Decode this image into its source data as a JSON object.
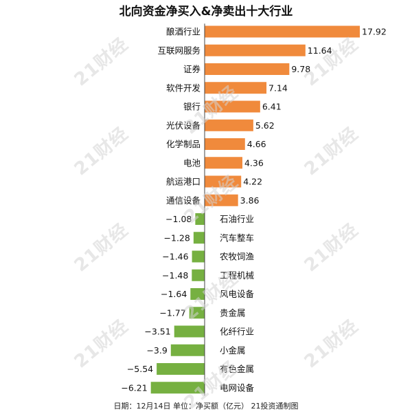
{
  "watermark_text": "21财经",
  "footnote": "日期：12月14日 单位：净买额（亿元） 21投资通制图",
  "colors": {
    "positive": "#f08a3c",
    "negative": "#76b041",
    "axis": "#444444",
    "text": "#111111"
  },
  "chart_data": {
    "type": "bar",
    "orientation": "horizontal",
    "title": "北向资金净买入&净卖出十大行业",
    "xlabel": "",
    "ylabel": "",
    "unit": "净买额（亿元）",
    "xlim": [
      -6.21,
      17.92
    ],
    "grid": false,
    "categories": [
      "酿酒行业",
      "互联网服务",
      "证券",
      "软件开发",
      "银行",
      "光伏设备",
      "化学制品",
      "电池",
      "航运港口",
      "通信设备",
      "石油行业",
      "汽车整车",
      "农牧饲渔",
      "工程机械",
      "风电设备",
      "贵金属",
      "化纤行业",
      "小金属",
      "有色金属",
      "电网设备"
    ],
    "values": [
      17.92,
      11.64,
      9.78,
      7.14,
      6.41,
      5.62,
      4.66,
      4.36,
      4.22,
      3.86,
      -1.08,
      -1.28,
      -1.46,
      -1.48,
      -1.64,
      -1.77,
      -3.51,
      -3.9,
      -5.54,
      -6.21
    ],
    "value_labels": [
      "17.92",
      "11.64",
      "9.78",
      "7.14",
      "6.41",
      "5.62",
      "4.66",
      "4.36",
      "4.22",
      "3.86",
      "−1.08",
      "−1.28",
      "−1.46",
      "−1.48",
      "−1.64",
      "−1.77",
      "−3.51",
      "−3.9",
      "−5.54",
      "−6.21"
    ]
  }
}
